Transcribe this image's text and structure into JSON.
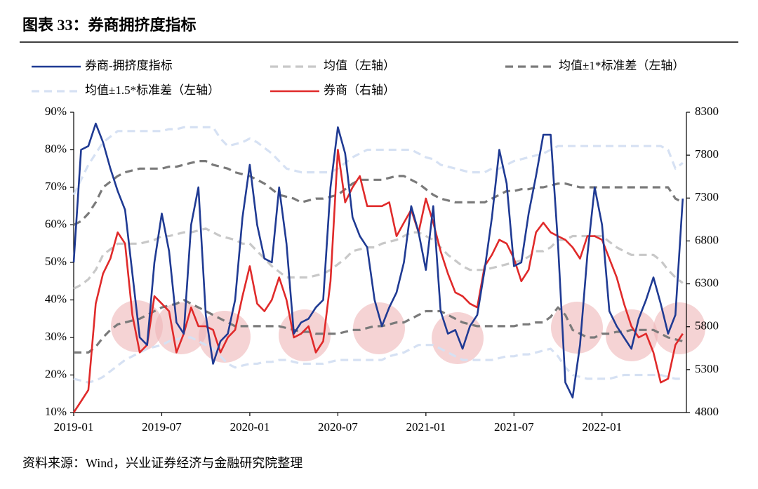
{
  "chart_data": {
    "type": "line",
    "title": "图表 33：券商拥挤度指标",
    "source": "资料来源：Wind，兴业证券经济与金融研究院整理",
    "categories": [
      "2019-01",
      null,
      null,
      null,
      null,
      null,
      null,
      null,
      null,
      null,
      null,
      null,
      "2019-07",
      null,
      null,
      null,
      null,
      null,
      null,
      null,
      null,
      null,
      null,
      null,
      "2020-01",
      null,
      null,
      null,
      null,
      null,
      null,
      null,
      null,
      null,
      null,
      null,
      "2020-07",
      null,
      null,
      null,
      null,
      null,
      null,
      null,
      null,
      null,
      null,
      null,
      "2021-01",
      null,
      null,
      null,
      null,
      null,
      null,
      null,
      null,
      null,
      null,
      null,
      "2021-07",
      null,
      null,
      null,
      null,
      null,
      null,
      null,
      null,
      null,
      null,
      null,
      "2022-01",
      null,
      null,
      null,
      null,
      null,
      null,
      null,
      null,
      null,
      null,
      null
    ],
    "ylim": [
      10,
      90
    ],
    "yticks": [
      {
        "value": 10,
        "label": "10%"
      },
      {
        "value": 20,
        "label": "20%"
      },
      {
        "value": 30,
        "label": "30%"
      },
      {
        "value": 40,
        "label": "40%"
      },
      {
        "value": 50,
        "label": "50%"
      },
      {
        "value": 60,
        "label": "60%"
      },
      {
        "value": 70,
        "label": "70%"
      },
      {
        "value": 80,
        "label": "80%"
      },
      {
        "value": 90,
        "label": "90%"
      }
    ],
    "y2lim": [
      4800,
      8300
    ],
    "y2ticks": [
      4800,
      5300,
      5800,
      6300,
      6800,
      7300,
      7800,
      8300
    ],
    "grid": false,
    "series": [
      {
        "name": "均值±1*标准差（左轴）",
        "color": "#7a7a7a",
        "dash": true,
        "values": [
          60,
          61,
          63,
          66,
          70,
          71.5,
          73,
          74,
          74.5,
          75,
          75,
          75,
          75,
          75.5,
          75.5,
          76,
          76.5,
          77,
          77,
          76,
          75.5,
          75,
          74,
          73.5,
          73,
          72,
          71,
          69.5,
          68,
          67.5,
          67,
          66,
          66.5,
          67,
          67,
          67.5,
          68,
          69.5,
          71,
          72,
          72,
          72,
          72,
          72.5,
          73,
          73,
          72,
          71,
          69.5,
          68,
          67,
          66.5,
          66,
          66,
          66,
          66,
          66,
          67,
          68,
          69,
          69,
          69.5,
          69.5,
          70,
          70,
          70.5,
          71,
          71,
          70.5,
          70,
          70,
          70,
          70,
          70,
          70,
          70,
          70,
          70,
          70,
          70,
          70,
          70,
          67,
          66
        ]
      },
      {
        "name": "均值±1*标准差（左轴）",
        "color": "#7a7a7a",
        "dash": true,
        "values": [
          26,
          26,
          26,
          27.5,
          30,
          32,
          33.5,
          34,
          34.5,
          35,
          36,
          37,
          38,
          38.5,
          39,
          40,
          39,
          38,
          37,
          36,
          35,
          34,
          33,
          33,
          33,
          33,
          33,
          33,
          33,
          32.5,
          32,
          31.5,
          31.5,
          31,
          31,
          31,
          31,
          31.5,
          32,
          32,
          32.5,
          33,
          33,
          33.5,
          34,
          34,
          35,
          36,
          37,
          37,
          37,
          36,
          35,
          34,
          33.5,
          33,
          33,
          33,
          33,
          33,
          33,
          33.5,
          33.5,
          34,
          34,
          35.5,
          38,
          36,
          32,
          31,
          30,
          30,
          31,
          31,
          31.5,
          31.5,
          32,
          32,
          32,
          32,
          31,
          30,
          29.5,
          29
        ]
      },
      {
        "name": "均值（左轴）",
        "color": "#c8c8c8",
        "dash": true,
        "values": [
          43,
          44,
          45.5,
          48,
          52,
          53.5,
          55,
          55,
          55,
          55,
          55.5,
          56,
          57,
          57,
          57.5,
          58,
          58,
          58.5,
          59,
          58,
          57,
          56.5,
          56,
          55,
          55,
          53,
          51,
          49,
          47.5,
          46,
          46,
          46,
          46,
          46.5,
          47,
          48,
          49.5,
          51,
          53,
          53.5,
          54,
          54,
          55,
          55.5,
          56,
          57,
          58,
          58,
          57,
          56,
          54,
          52,
          50.5,
          49,
          48,
          48,
          48,
          48.5,
          49,
          49.5,
          50,
          50.5,
          51.5,
          53,
          53,
          54,
          56,
          56,
          57,
          57,
          57,
          57,
          57,
          55.5,
          54,
          53,
          52,
          52,
          52,
          52,
          50.5,
          48,
          46,
          44.5
        ]
      },
      {
        "name": "均值±1.5*标准差（左轴）",
        "color": "#d6e1f3",
        "dash": true,
        "values": [
          68,
          72,
          76,
          79,
          82,
          83.5,
          85,
          85,
          85,
          85,
          85,
          85,
          85,
          85.5,
          85.5,
          86,
          86,
          86,
          86,
          86,
          83,
          81,
          81.5,
          82,
          83,
          82,
          80.5,
          79,
          77,
          75,
          74.5,
          74,
          74,
          74,
          74,
          74,
          75,
          76.5,
          78,
          79,
          80,
          80,
          80,
          80,
          80,
          80,
          80,
          79,
          78,
          77.5,
          76,
          75.5,
          75,
          74.5,
          74,
          74,
          74,
          75,
          75,
          76,
          77,
          77.5,
          78,
          78.5,
          79,
          80,
          81,
          81,
          81,
          81,
          81,
          81,
          81,
          81,
          81,
          81,
          81,
          81,
          81,
          81,
          81,
          80,
          75,
          76.5
        ]
      },
      {
        "name": "均值±1.5*标准差（左轴）",
        "color": "#d6e1f3",
        "dash": true,
        "values": [
          19,
          18.5,
          18,
          18.5,
          19.5,
          21,
          22.5,
          24,
          25,
          26,
          27,
          27.5,
          28,
          29,
          29.5,
          30,
          30,
          29,
          28,
          27,
          25,
          23,
          22,
          22.5,
          23,
          23,
          23.5,
          23.5,
          24,
          24,
          23.5,
          23,
          23,
          23,
          23,
          23.5,
          24,
          24,
          24,
          24,
          24,
          24,
          24,
          25,
          25.5,
          26,
          27,
          28,
          28,
          28,
          27,
          26,
          25,
          24,
          24,
          24,
          24,
          24,
          24.5,
          25,
          25,
          25.5,
          25.5,
          26,
          26.5,
          27,
          25,
          22,
          20,
          19.5,
          19,
          19,
          19,
          19,
          19.5,
          20,
          20,
          20,
          20,
          20,
          20,
          19.5,
          19,
          19
        ]
      },
      {
        "name": "券商（右轴）",
        "color": "#e02a2a",
        "axis": "y2",
        "values": [
          4800,
          4931,
          5063,
          6069,
          6419,
          6594,
          6900,
          6769,
          5938,
          5500,
          5588,
          6156,
          6069,
          5981,
          5500,
          5719,
          6025,
          5806,
          5806,
          5763,
          5500,
          5675,
          5763,
          6156,
          6506,
          6069,
          5981,
          6113,
          6375,
          6113,
          5675,
          5719,
          5806,
          5500,
          5631,
          6331,
          7863,
          7250,
          7425,
          7556,
          7206,
          7206,
          7206,
          7250,
          6856,
          7013,
          7163,
          6900,
          7294,
          7013,
          6681,
          6419,
          6200,
          6156,
          6069,
          6025,
          6506,
          6638,
          6813,
          6769,
          6594,
          6331,
          6463,
          6900,
          7013,
          6900,
          6856,
          6813,
          6725,
          6594,
          6856,
          6856,
          6813,
          6594,
          6375,
          6069,
          5806,
          5675,
          5719,
          5500,
          5150,
          5194,
          5588,
          5719
        ]
      },
      {
        "name": "券商-拥挤度指标",
        "color": "#1f3a93",
        "values": [
          50,
          80,
          81,
          87,
          82,
          75,
          69,
          64,
          47,
          30,
          28,
          50,
          63,
          53,
          34,
          31,
          60,
          70,
          36,
          23,
          29,
          31,
          40,
          62,
          76,
          60,
          51,
          50,
          70,
          55,
          31,
          34,
          35,
          38,
          40,
          70,
          86,
          79,
          62,
          57,
          54,
          40,
          33,
          38,
          42,
          50,
          65,
          58,
          48,
          65,
          37,
          31,
          32,
          27,
          33,
          36,
          48,
          62,
          80,
          71,
          49,
          50,
          63,
          73,
          84,
          84,
          55,
          18,
          14,
          28,
          52,
          70,
          60,
          37,
          33,
          30,
          27,
          35,
          40,
          46,
          39,
          31,
          36,
          67
        ]
      }
    ],
    "legend_order": [
      6,
      2,
      0,
      3,
      5
    ]
  }
}
